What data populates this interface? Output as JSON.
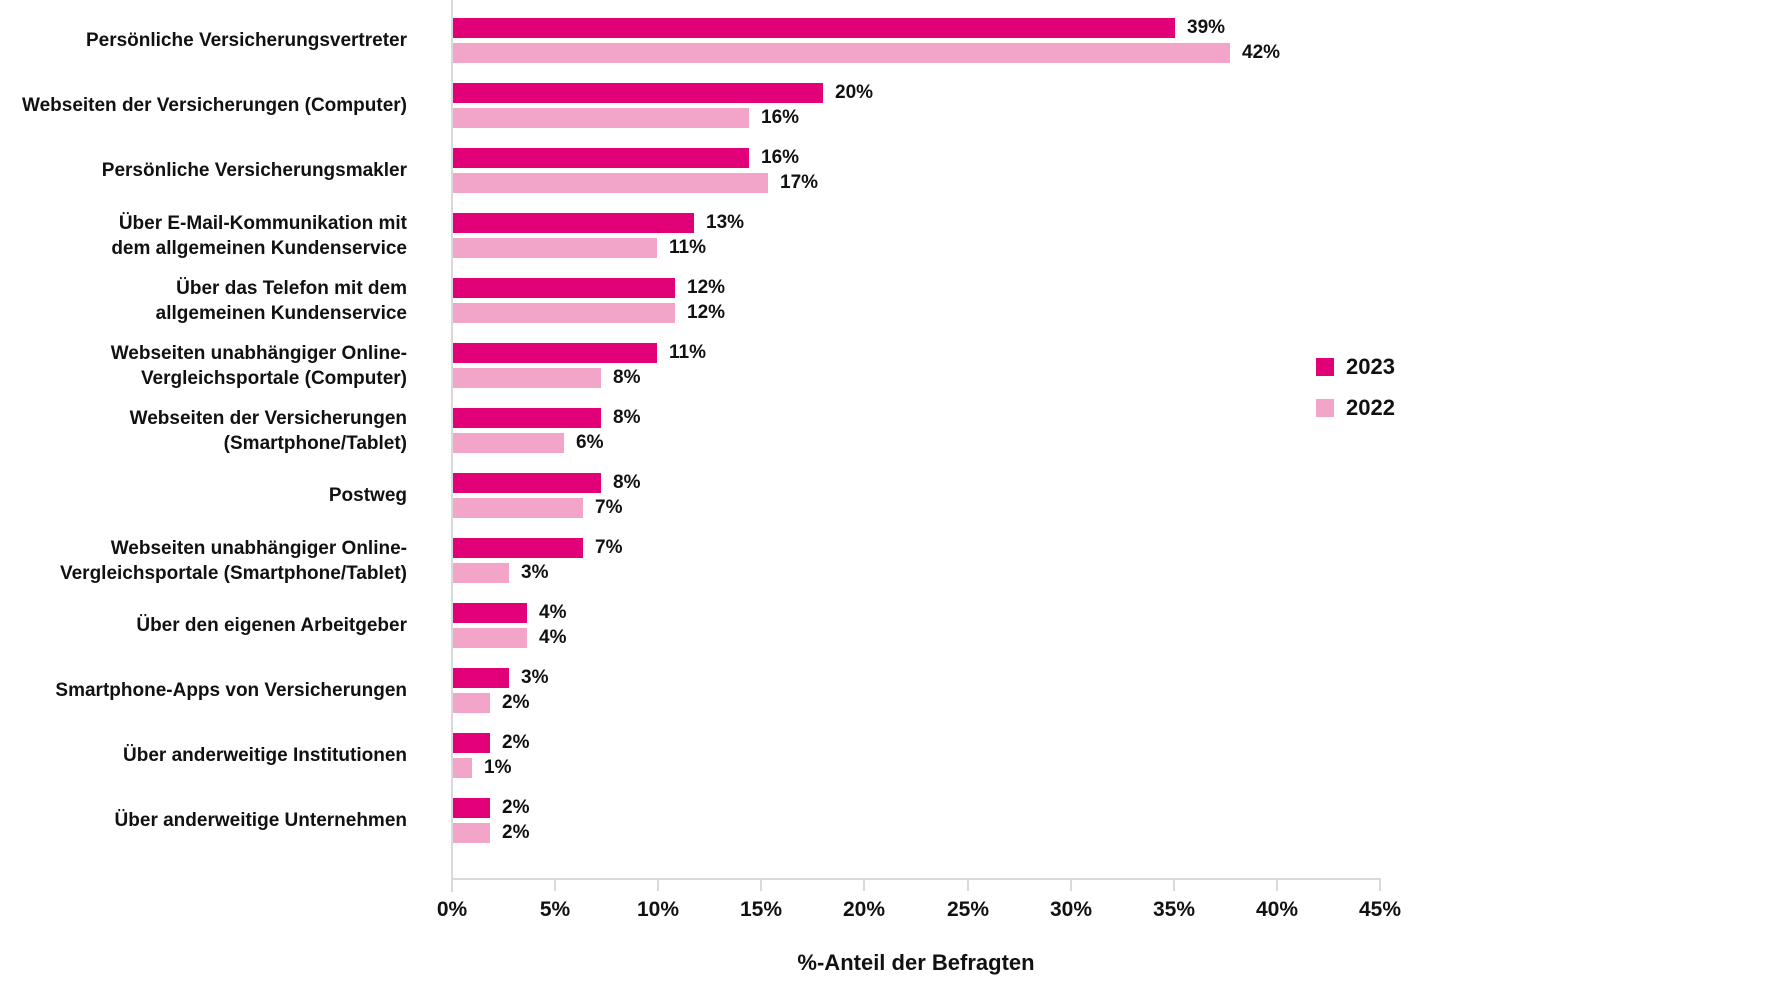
{
  "chart_data": {
    "type": "bar",
    "orientation": "horizontal",
    "xlabel": "%-Anteil der Befragten",
    "value_suffix": "%",
    "xlim": [
      0,
      45
    ],
    "xtick_values": [
      0,
      5,
      10,
      15,
      20,
      25,
      30,
      35,
      40,
      45
    ],
    "xtick_labels": [
      "0%",
      "5%",
      "10%",
      "15%",
      "20%",
      "25%",
      "30%",
      "35%",
      "40%",
      "45%"
    ],
    "grid": false,
    "legend_position": "right",
    "background_color": "#ffffff",
    "axis_color": "#d9d9d9",
    "text_color": "#111111",
    "categories": [
      [
        "Persönliche Versicherungsvertreter"
      ],
      [
        "Webseiten der Versicherungen (Computer)"
      ],
      [
        "Persönliche Versicherungsmakler"
      ],
      [
        "Über E-Mail-Kommunikation mit",
        "dem allgemeinen Kundenservice"
      ],
      [
        "Über das Telefon mit dem",
        "allgemeinen Kundenservice"
      ],
      [
        "Webseiten unabhängiger Online-",
        "Vergleichsportale (Computer)"
      ],
      [
        "Webseiten der Versicherungen",
        "(Smartphone/Tablet)"
      ],
      [
        "Postweg"
      ],
      [
        "Webseiten unabhängiger Online-",
        "Vergleichsportale (Smartphone/Tablet)"
      ],
      [
        "Über den eigenen Arbeitgeber"
      ],
      [
        "Smartphone-Apps von Versicherungen"
      ],
      [
        "Über anderweitige Institutionen"
      ],
      [
        "Über anderweitige Unternehmen"
      ]
    ],
    "series": [
      {
        "name": "2023",
        "color": "#e20078",
        "values": [
          39,
          20,
          16,
          13,
          12,
          11,
          8,
          8,
          7,
          4,
          3,
          2,
          2
        ]
      },
      {
        "name": "2022",
        "color": "#f2a5c8",
        "values": [
          42,
          16,
          17,
          11,
          12,
          8,
          6,
          7,
          3,
          4,
          2,
          1,
          2
        ]
      }
    ]
  }
}
